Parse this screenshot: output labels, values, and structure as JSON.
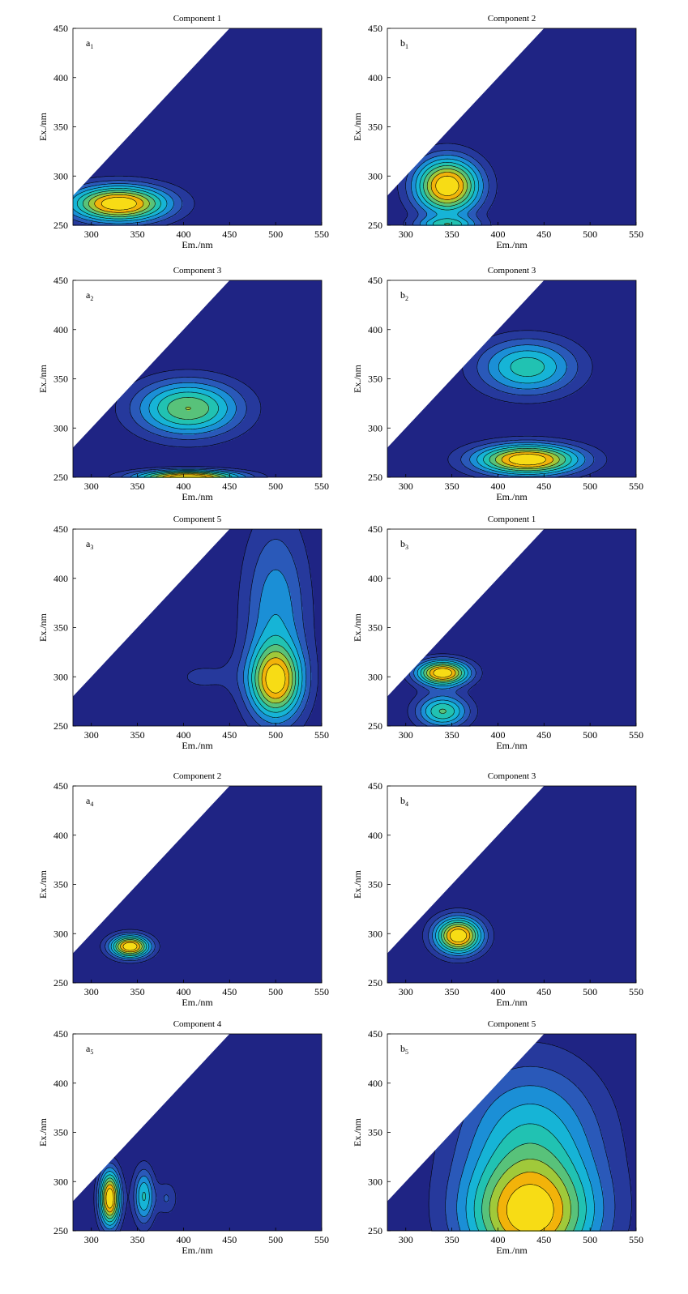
{
  "colors": {
    "background": "#1f2484",
    "level_colors": [
      "#1f2484",
      "#26399c",
      "#2a59b9",
      "#1b8fd6",
      "#16b4d6",
      "#21c2b2",
      "#58c27a",
      "#a0c93a",
      "#f2b30a",
      "#f7dc15"
    ],
    "line_color": "#000000",
    "masked_region": "#ffffff"
  },
  "chart_data": [
    {
      "panel": "a1",
      "type": "heatmap",
      "title": "Component 1",
      "xlabel": "Em./nm",
      "ylabel": "Ex./nm",
      "corner_label": {
        "letter": "a",
        "sub": "1"
      },
      "xlim": [
        280,
        550
      ],
      "ylim": [
        250,
        450
      ],
      "xticks": [
        "300",
        "350",
        "400",
        "450",
        "500",
        "550"
      ],
      "yticks": [
        "250",
        "300",
        "350",
        "400",
        "450"
      ],
      "peaks": [
        {
          "em": 330,
          "ex": 272,
          "sx": 38,
          "sy": 13,
          "amp": 1.0
        }
      ]
    },
    {
      "panel": "b1",
      "type": "heatmap",
      "title": "Component 2",
      "xlabel": "Em./nm",
      "ylabel": "Ex./nm",
      "corner_label": {
        "letter": "b",
        "sub": "1"
      },
      "xlim": [
        280,
        550
      ],
      "ylim": [
        250,
        450
      ],
      "xticks": [
        "300",
        "350",
        "400",
        "450",
        "500",
        "550"
      ],
      "yticks": [
        "250",
        "300",
        "350",
        "400",
        "450"
      ],
      "peaks": [
        {
          "em": 345,
          "ex": 290,
          "sx": 25,
          "sy": 20,
          "amp": 1.0
        },
        {
          "em": 345,
          "ex": 250,
          "sx": 25,
          "sy": 6,
          "amp": 0.45
        }
      ]
    },
    {
      "panel": "a2",
      "type": "heatmap",
      "title": "Component 3",
      "xlabel": "Em./nm",
      "ylabel": "Ex./nm",
      "corner_label": {
        "letter": "a",
        "sub": "2"
      },
      "xlim": [
        280,
        550
      ],
      "ylim": [
        250,
        450
      ],
      "xticks": [
        "300",
        "350",
        "400",
        "450",
        "500",
        "550"
      ],
      "yticks": [
        "250",
        "300",
        "350",
        "400",
        "450"
      ],
      "peaks": [
        {
          "em": 405,
          "ex": 320,
          "sx": 40,
          "sy": 20,
          "amp": 0.62
        },
        {
          "em": 405,
          "ex": 250,
          "sx": 40,
          "sy": 5,
          "amp": 0.9
        }
      ]
    },
    {
      "panel": "b2",
      "type": "heatmap",
      "title": "Component 3",
      "xlabel": "Em./nm",
      "ylabel": "Ex./nm",
      "corner_label": {
        "letter": "b",
        "sub": "2"
      },
      "xlim": [
        280,
        550
      ],
      "ylim": [
        250,
        450
      ],
      "xticks": [
        "300",
        "350",
        "400",
        "450",
        "500",
        "550"
      ],
      "yticks": [
        "250",
        "300",
        "350",
        "400",
        "450"
      ],
      "peaks": [
        {
          "em": 432,
          "ex": 362,
          "sx": 38,
          "sy": 20,
          "amp": 0.55
        },
        {
          "em": 432,
          "ex": 268,
          "sx": 40,
          "sy": 11,
          "amp": 1.0
        }
      ]
    },
    {
      "panel": "a3",
      "type": "heatmap",
      "title": "Component 5",
      "xlabel": "Em./nm",
      "ylabel": "Ex./nm",
      "corner_label": {
        "letter": "a",
        "sub": "3"
      },
      "xlim": [
        280,
        550
      ],
      "ylim": [
        250,
        450
      ],
      "xticks": [
        "300",
        "350",
        "400",
        "450",
        "500",
        "550"
      ],
      "yticks": [
        "250",
        "300",
        "350",
        "400",
        "450"
      ],
      "peaks": [
        {
          "em": 500,
          "ex": 295,
          "sx": 20,
          "sy": 25,
          "amp": 1.0
        },
        {
          "em": 500,
          "ex": 360,
          "sx": 25,
          "sy": 70,
          "amp": 0.5
        },
        {
          "em": 420,
          "ex": 300,
          "sx": 30,
          "sy": 15,
          "amp": 0.15
        }
      ]
    },
    {
      "panel": "b3",
      "type": "heatmap",
      "title": "Component 1",
      "xlabel": "Em./nm",
      "ylabel": "Ex./nm",
      "corner_label": {
        "letter": "b",
        "sub": "3"
      },
      "xlim": [
        280,
        550
      ],
      "ylim": [
        250,
        450
      ],
      "xticks": [
        "300",
        "350",
        "400",
        "450",
        "500",
        "550"
      ],
      "yticks": [
        "250",
        "300",
        "350",
        "400",
        "450"
      ],
      "peaks": [
        {
          "em": 340,
          "ex": 304,
          "sx": 20,
          "sy": 9,
          "amp": 1.0
        },
        {
          "em": 340,
          "ex": 265,
          "sx": 20,
          "sy": 12,
          "amp": 0.6
        }
      ]
    },
    {
      "panel": "a4",
      "type": "heatmap",
      "title": "Component 2",
      "xlabel": "Em./nm",
      "ylabel": "Ex./nm",
      "corner_label": {
        "letter": "a",
        "sub": "4"
      },
      "xlim": [
        280,
        550
      ],
      "ylim": [
        250,
        450
      ],
      "xticks": [
        "300",
        "350",
        "400",
        "450",
        "500",
        "550"
      ],
      "yticks": [
        "250",
        "300",
        "350",
        "400",
        "450"
      ],
      "peaks": [
        {
          "em": 342,
          "ex": 287,
          "sx": 15,
          "sy": 8,
          "amp": 1.0
        }
      ]
    },
    {
      "panel": "b4",
      "type": "heatmap",
      "title": "Component 3",
      "xlabel": "Em./nm",
      "ylabel": "Ex./nm",
      "corner_label": {
        "letter": "b",
        "sub": "4"
      },
      "xlim": [
        280,
        550
      ],
      "ylim": [
        250,
        450
      ],
      "xticks": [
        "300",
        "350",
        "400",
        "450",
        "500",
        "550"
      ],
      "yticks": [
        "250",
        "300",
        "350",
        "400",
        "450"
      ],
      "peaks": [
        {
          "em": 357,
          "ex": 298,
          "sx": 18,
          "sy": 13,
          "amp": 1.0
        }
      ]
    },
    {
      "panel": "a5",
      "type": "heatmap",
      "title": "Component 4",
      "xlabel": "Em./nm",
      "ylabel": "Ex./nm",
      "corner_label": {
        "letter": "a",
        "sub": "5"
      },
      "xlim": [
        280,
        550
      ],
      "ylim": [
        250,
        450
      ],
      "xticks": [
        "300",
        "350",
        "400",
        "450",
        "500",
        "550"
      ],
      "yticks": [
        "250",
        "300",
        "350",
        "400",
        "450"
      ],
      "peaks": [
        {
          "em": 320,
          "ex": 283,
          "sx": 8,
          "sy": 20,
          "amp": 1.0
        },
        {
          "em": 357,
          "ex": 285,
          "sx": 8,
          "sy": 20,
          "amp": 0.5
        },
        {
          "em": 382,
          "ex": 283,
          "sx": 8,
          "sy": 12,
          "amp": 0.2
        }
      ]
    },
    {
      "panel": "b5",
      "type": "heatmap",
      "title": "Component 5",
      "xlabel": "Em./nm",
      "ylabel": "Ex./nm",
      "corner_label": {
        "letter": "b",
        "sub": "5"
      },
      "xlim": [
        280,
        550
      ],
      "ylim": [
        250,
        450
      ],
      "xticks": [
        "300",
        "350",
        "400",
        "450",
        "500",
        "550"
      ],
      "yticks": [
        "250",
        "300",
        "350",
        "400",
        "450"
      ],
      "peaks": [
        {
          "em": 435,
          "ex": 262,
          "sx": 50,
          "sy": 40,
          "amp": 1.0
        },
        {
          "em": 435,
          "ex": 345,
          "sx": 55,
          "sy": 55,
          "amp": 0.55
        }
      ]
    }
  ]
}
